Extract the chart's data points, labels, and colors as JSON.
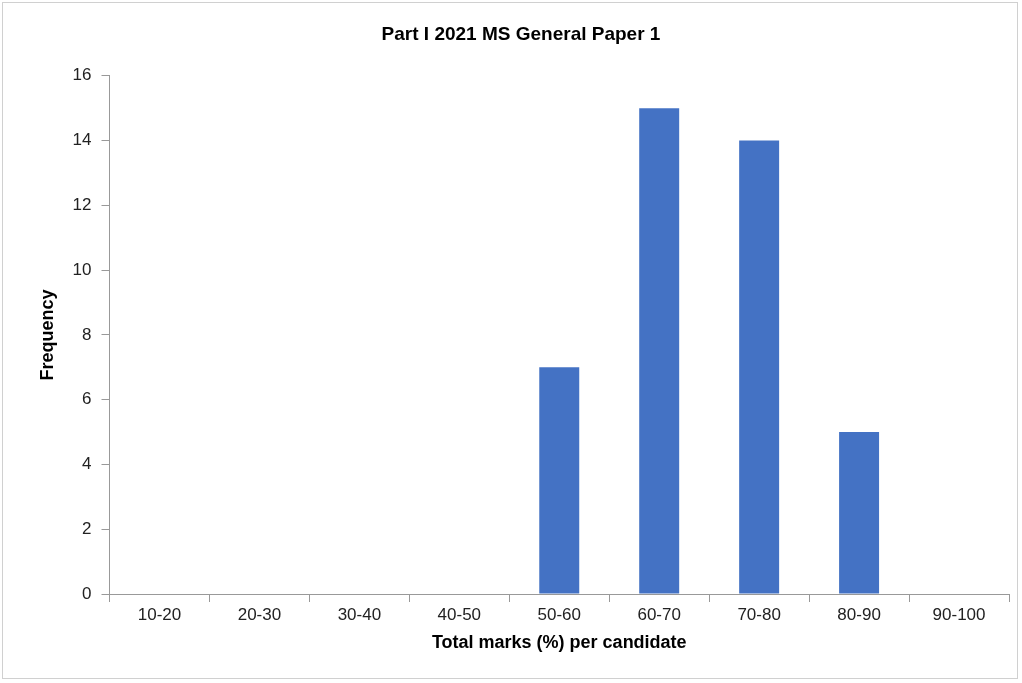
{
  "chart_data": {
    "type": "bar",
    "title": "Part I 2021 MS General Paper 1",
    "xlabel": "Total marks (%) per candidate",
    "ylabel": "Frequency",
    "categories": [
      "10-20",
      "20-30",
      "30-40",
      "40-50",
      "50-60",
      "60-70",
      "70-80",
      "80-90",
      "90-100"
    ],
    "values": [
      0,
      0,
      0,
      0,
      7,
      15,
      14,
      5,
      0
    ],
    "color": "#4472c4",
    "ylim": [
      0,
      16
    ],
    "yticks": [
      0,
      2,
      4,
      6,
      8,
      10,
      12,
      14,
      16
    ],
    "grid": false,
    "legend": false
  }
}
